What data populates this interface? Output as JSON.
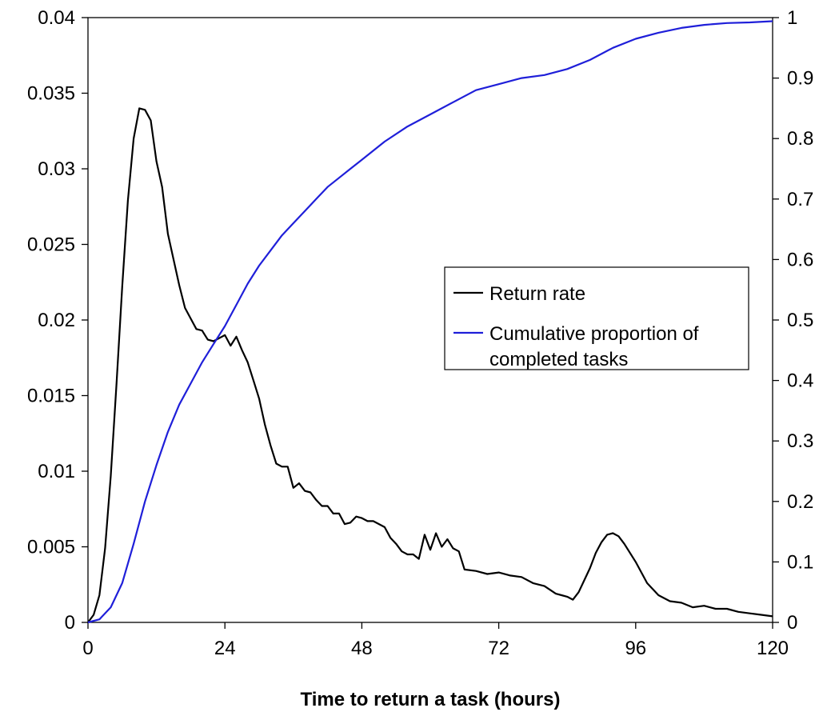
{
  "chart_data": {
    "type": "line",
    "xlabel": "Time to return a task (hours)",
    "x_ticks": [
      0,
      24,
      48,
      72,
      96,
      120
    ],
    "xlim": [
      0,
      120
    ],
    "y_left": {
      "lim": [
        0,
        0.04
      ],
      "ticks": [
        "0",
        "0.005",
        "0.01",
        "0.015",
        "0.02",
        "0.025",
        "0.03",
        "0.035",
        "0.04"
      ]
    },
    "y_right": {
      "lim": [
        0,
        1
      ],
      "ticks": [
        "0",
        "0.1",
        "0.2",
        "0.3",
        "0.4",
        "0.5",
        "0.6",
        "0.7",
        "0.8",
        "0.9",
        "1"
      ]
    },
    "grid": false,
    "legend": {
      "position": "right-center",
      "entries": [
        {
          "label_lines": [
            "Return rate"
          ]
        },
        {
          "label_lines": [
            "Cumulative proportion of",
            "completed tasks"
          ]
        }
      ]
    },
    "series": [
      {
        "name": "Return rate",
        "axis": "left",
        "color": "#000000",
        "x": [
          0,
          1,
          2,
          3,
          4,
          5,
          6,
          7,
          8,
          9,
          10,
          11,
          12,
          13,
          14,
          15,
          16,
          17,
          18,
          19,
          20,
          21,
          22,
          23,
          24,
          25,
          26,
          27,
          28,
          29,
          30,
          31,
          32,
          33,
          34,
          35,
          36,
          37,
          38,
          39,
          40,
          41,
          42,
          43,
          44,
          45,
          46,
          47,
          48,
          49,
          50,
          51,
          52,
          53,
          54,
          55,
          56,
          57,
          58,
          59,
          60,
          61,
          62,
          63,
          64,
          65,
          66,
          68,
          70,
          72,
          74,
          76,
          78,
          80,
          82,
          83,
          84,
          85,
          86,
          87,
          88,
          89,
          90,
          91,
          92,
          93,
          94,
          96,
          98,
          100,
          102,
          104,
          106,
          108,
          110,
          112,
          114,
          116,
          118,
          120
        ],
        "y": [
          0,
          0.0005,
          0.0018,
          0.0049,
          0.0097,
          0.0158,
          0.0222,
          0.0279,
          0.032,
          0.034,
          0.0339,
          0.0332,
          0.0305,
          0.0288,
          0.0257,
          0.024,
          0.0223,
          0.0208,
          0.0201,
          0.0194,
          0.0193,
          0.0187,
          0.0186,
          0.0188,
          0.019,
          0.0183,
          0.0189,
          0.018,
          0.0172,
          0.016,
          0.0148,
          0.0131,
          0.0117,
          0.0105,
          0.0103,
          0.0103,
          0.0089,
          0.0092,
          0.0087,
          0.0086,
          0.0081,
          0.0077,
          0.0077,
          0.0072,
          0.0072,
          0.0065,
          0.0066,
          0.007,
          0.0069,
          0.0067,
          0.0067,
          0.0065,
          0.0063,
          0.0056,
          0.0052,
          0.0047,
          0.0045,
          0.0045,
          0.0042,
          0.0058,
          0.0048,
          0.0059,
          0.005,
          0.0055,
          0.0049,
          0.0047,
          0.0035,
          0.0034,
          0.0032,
          0.0033,
          0.0031,
          0.003,
          0.0026,
          0.0024,
          0.0019,
          0.0018,
          0.0017,
          0.0015,
          0.002,
          0.0028,
          0.0036,
          0.0046,
          0.0053,
          0.0058,
          0.0059,
          0.0057,
          0.0052,
          0.004,
          0.0026,
          0.0018,
          0.0014,
          0.0013,
          0.001,
          0.0011,
          0.0009,
          0.0009,
          0.0007,
          0.0006,
          0.0005,
          0.0004
        ]
      },
      {
        "name": "Cumulative proportion of completed tasks",
        "axis": "right",
        "color": "#1f1fd9",
        "x": [
          0,
          2,
          4,
          6,
          8,
          10,
          12,
          14,
          16,
          18,
          20,
          22,
          24,
          26,
          28,
          30,
          32,
          34,
          36,
          38,
          40,
          42,
          44,
          46,
          48,
          52,
          56,
          60,
          64,
          68,
          72,
          76,
          80,
          84,
          88,
          92,
          96,
          100,
          104,
          108,
          112,
          116,
          120
        ],
        "y": [
          0,
          0.005,
          0.025,
          0.065,
          0.13,
          0.2,
          0.26,
          0.315,
          0.36,
          0.395,
          0.43,
          0.46,
          0.49,
          0.525,
          0.56,
          0.59,
          0.615,
          0.64,
          0.66,
          0.68,
          0.7,
          0.72,
          0.735,
          0.75,
          0.765,
          0.795,
          0.82,
          0.84,
          0.86,
          0.88,
          0.89,
          0.9,
          0.905,
          0.915,
          0.93,
          0.95,
          0.965,
          0.975,
          0.983,
          0.988,
          0.991,
          0.992,
          0.994
        ]
      }
    ]
  }
}
